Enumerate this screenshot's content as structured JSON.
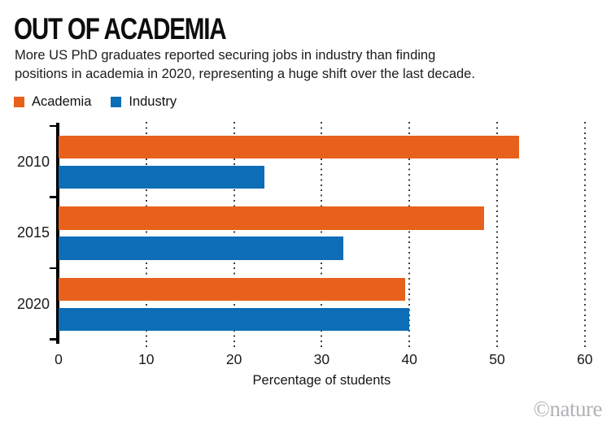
{
  "header": {
    "title": "OUT OF ACADEMIA",
    "subtitle_lines": [
      "More US PhD graduates reported securing jobs in industry than finding",
      "positions in academia in 2020, representing a huge shift over the last decade."
    ]
  },
  "legend": {
    "items": [
      {
        "label": "Academia",
        "color": "#e8611c"
      },
      {
        "label": "Industry",
        "color": "#0d6db6"
      }
    ]
  },
  "chart_data": {
    "type": "bar",
    "orientation": "horizontal",
    "title": "OUT OF ACADEMIA",
    "categories": [
      "2010",
      "2015",
      "2020"
    ],
    "series": [
      {
        "name": "Academia",
        "color": "#e8611c",
        "values": [
          52.5,
          48.5,
          39.5
        ]
      },
      {
        "name": "Industry",
        "color": "#0d6db6",
        "values": [
          23.5,
          32.5,
          40
        ]
      }
    ],
    "xlabel": "Percentage of students",
    "ylabel": "",
    "xlim": [
      0,
      60
    ],
    "xticks": [
      0,
      10,
      20,
      30,
      40,
      50,
      60
    ],
    "grid": "vertical-dotted",
    "legend_position": "top-left"
  },
  "footer": {
    "watermark": "©nature"
  }
}
